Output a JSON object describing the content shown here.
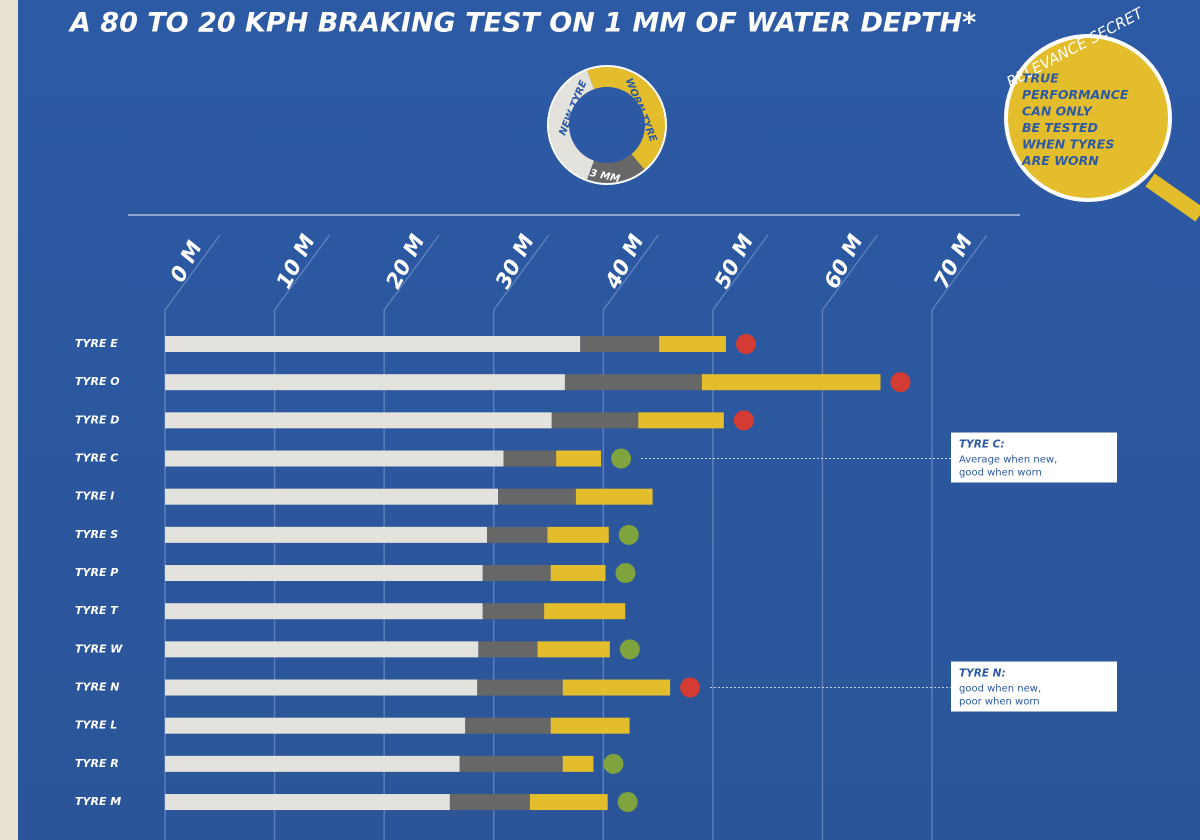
{
  "chart_data": {
    "type": "stacked-barh",
    "title": "A 80 TO 20 KPH BRAKING TEST ON 1 MM OF WATER DEPTH*",
    "categories": [
      "TYRE E",
      "TYRE O",
      "TYRE D",
      "TYRE C",
      "TYRE I",
      "TYRE S",
      "TYRE P",
      "TYRE T",
      "TYRE W",
      "TYRE N",
      "TYRE L",
      "TYRE R",
      "TYRE M"
    ],
    "series": [
      {
        "name": "NEW TYRE",
        "color": "#e4e2dc",
        "values": [
          37.9,
          36.5,
          35.3,
          30.9,
          30.4,
          29.4,
          29.0,
          29.0,
          28.6,
          28.5,
          27.4,
          26.9,
          26.0
        ]
      },
      {
        "name": "3 MM",
        "color": "#676767",
        "values": [
          7.2,
          12.5,
          7.9,
          4.8,
          7.1,
          5.5,
          6.2,
          5.6,
          5.4,
          7.8,
          7.8,
          9.4,
          7.3
        ]
      },
      {
        "name": "WORN TYRE",
        "color": "#e3bd2b",
        "values": [
          6.1,
          16.3,
          7.8,
          4.1,
          7.0,
          5.6,
          5.0,
          7.4,
          6.6,
          9.8,
          7.2,
          2.8,
          7.1
        ]
      }
    ],
    "marker_colors": [
      "#d43c33",
      "#d43c33",
      "#d43c33",
      "#7fa33d",
      null,
      "#7fa33d",
      "#7fa33d",
      null,
      "#7fa33d",
      "#d43c33",
      null,
      "#7fa33d",
      "#7fa33d"
    ],
    "xlim": [
      0,
      70
    ],
    "xticks": [
      {
        "value": 0,
        "label": "0 M"
      },
      {
        "value": 10,
        "label": "10 M"
      },
      {
        "value": 20,
        "label": "20 M"
      },
      {
        "value": 30,
        "label": "30 M"
      },
      {
        "value": 40,
        "label": "40 M"
      },
      {
        "value": 50,
        "label": "50 M"
      },
      {
        "value": 60,
        "label": "60 M"
      },
      {
        "value": 70,
        "label": "70 M"
      }
    ],
    "grid": true,
    "callout": {
      "title": "RELEVANCE SECRET",
      "lines": [
        "TRUE",
        "PERFORMANCE",
        "CAN ONLY",
        "BE TESTED",
        "WHEN TYRES",
        "ARE WORN"
      ]
    },
    "annotations": [
      {
        "title": "TYRE C:",
        "lines": [
          "Average when new,",
          "good when worn"
        ]
      },
      {
        "title": "TYRE N:",
        "lines": [
          "good when new,",
          "poor when worn"
        ]
      }
    ]
  }
}
